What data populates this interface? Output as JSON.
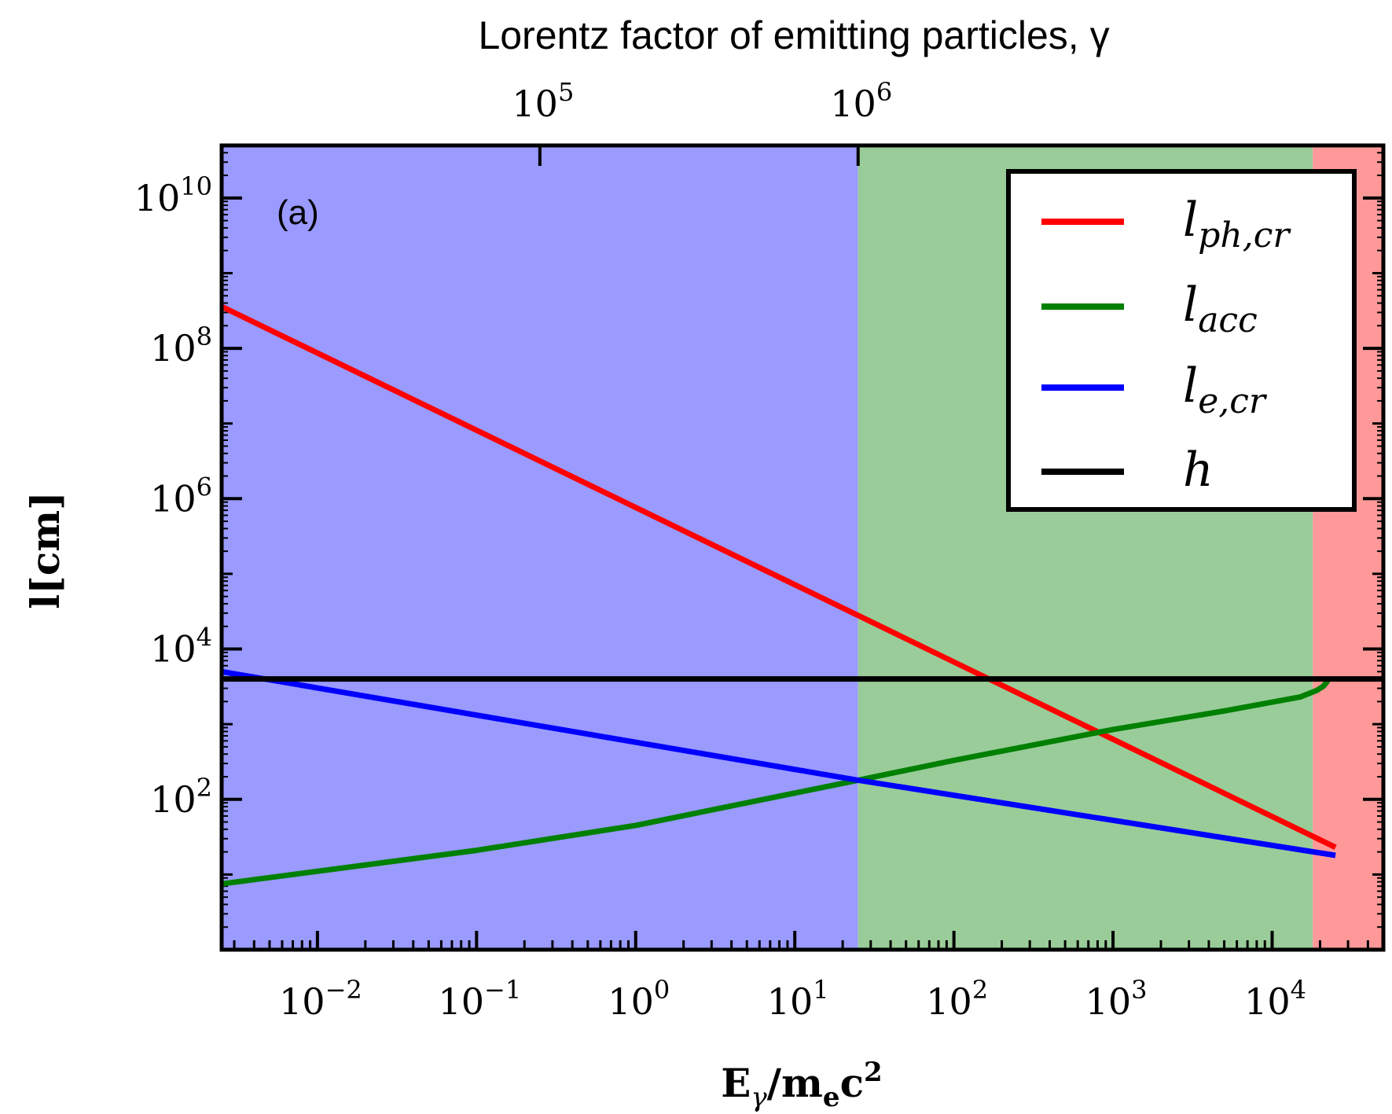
{
  "chart_data": {
    "type": "line",
    "panel_label": "(a)",
    "x_scale": "log",
    "y_scale": "log",
    "xlim": [
      0.0025,
      50000
    ],
    "ylim": [
      1,
      50000000000
    ],
    "xlabel": {
      "main": "E",
      "sub1": "γ",
      "slash": "/",
      "m": "m",
      "sub2": "e",
      "c": "c",
      "sup": "2"
    },
    "ylabel": "l[cm]",
    "top_axis_label": "Lorentz factor of emitting particles, γ",
    "x_ticks": [
      {
        "value": 0.01,
        "base": "10",
        "exp": "−2"
      },
      {
        "value": 0.1,
        "base": "10",
        "exp": "−1"
      },
      {
        "value": 1,
        "base": "10",
        "exp": "0"
      },
      {
        "value": 10,
        "base": "10",
        "exp": "1"
      },
      {
        "value": 100,
        "base": "10",
        "exp": "2"
      },
      {
        "value": 1000,
        "base": "10",
        "exp": "3"
      },
      {
        "value": 10000,
        "base": "10",
        "exp": "4"
      }
    ],
    "y_ticks": [
      {
        "value": 100,
        "base": "10",
        "exp": "2"
      },
      {
        "value": 10000,
        "base": "10",
        "exp": "4"
      },
      {
        "value": 1000000,
        "base": "10",
        "exp": "6"
      },
      {
        "value": 100000000,
        "base": "10",
        "exp": "8"
      },
      {
        "value": 10000000000,
        "base": "10",
        "exp": "10"
      }
    ],
    "top_ticks": [
      {
        "x_value": 0.25,
        "base": "10",
        "exp": "5"
      },
      {
        "x_value": 25,
        "base": "10",
        "exp": "6"
      }
    ],
    "regions": [
      {
        "name": "blue-region",
        "x_from": 0.0025,
        "x_to": 25,
        "color": "#9a9aff"
      },
      {
        "name": "green-region",
        "x_from": 25,
        "x_to": 18000,
        "color": "#99cc99"
      },
      {
        "name": "red-region",
        "x_from": 18000,
        "x_to": 50000,
        "color": "#ff9999"
      }
    ],
    "series": [
      {
        "name": "l_ph,cr",
        "label_main": "l",
        "label_sub": "ph,cr",
        "color": "#ff0000",
        "x": [
          0.0025,
          25,
          25000
        ],
        "y": [
          360000000,
          28000,
          23
        ]
      },
      {
        "name": "l_acc",
        "label_main": "l",
        "label_sub": "acc",
        "color": "#008000",
        "x": [
          0.0025,
          0.1,
          1,
          25,
          100,
          1000,
          5000,
          15000,
          19000,
          21000,
          22000,
          22500
        ],
        "y": [
          7.5,
          21,
          45,
          180,
          330,
          850,
          1500,
          2300,
          2800,
          3200,
          3600,
          4000
        ]
      },
      {
        "name": "l_e,cr",
        "label_main": "l",
        "label_sub": "e,cr",
        "color": "#0000ff",
        "x": [
          0.0025,
          25,
          25000
        ],
        "y": [
          5000,
          180,
          18
        ]
      },
      {
        "name": "h",
        "label_main": "h",
        "label_sub": "",
        "color": "#000000",
        "x": [
          0.0025,
          50000
        ],
        "y": [
          4000,
          4000
        ]
      }
    ]
  }
}
